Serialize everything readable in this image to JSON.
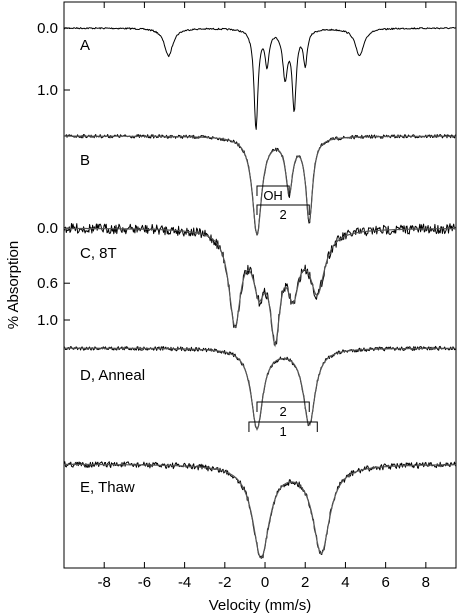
{
  "chart_data": {
    "type": "line",
    "title": "",
    "xlabel": "Velocity (mm/s)",
    "ylabel": "% Absorption",
    "xlim": [
      -10,
      9.5
    ],
    "x_ticks": [
      -8,
      -6,
      -4,
      -2,
      0,
      2,
      4,
      6,
      8
    ],
    "y_tick_groups": [
      {
        "labels": [
          "0.0",
          "1.0"
        ],
        "values": [
          0.0,
          1.0
        ],
        "panel": "A"
      },
      {
        "labels": [
          "0.0",
          "0.6",
          "1.0"
        ],
        "values": [
          0.0,
          0.6,
          1.0
        ],
        "panel": "C, 8T"
      }
    ],
    "series": [
      {
        "name": "A",
        "baseline_pct": 0.0,
        "scale_pct": 1.0,
        "fit": false,
        "peaks": [
          {
            "v": -4.8,
            "depth": 0.45,
            "width": 0.25
          },
          {
            "v": -0.45,
            "depth": 1.6,
            "width": 0.12
          },
          {
            "v": 0.1,
            "depth": 0.55,
            "width": 0.12
          },
          {
            "v": 1.0,
            "depth": 0.75,
            "width": 0.15
          },
          {
            "v": 1.45,
            "depth": 1.25,
            "width": 0.12
          },
          {
            "v": 2.0,
            "depth": 0.55,
            "width": 0.12
          },
          {
            "v": 4.7,
            "depth": 0.45,
            "width": 0.25
          }
        ]
      },
      {
        "name": "B",
        "fit": true,
        "peaks": [
          {
            "v": -0.4,
            "depth": 1.0,
            "width": 0.28
          },
          {
            "v": 1.2,
            "depth": 0.55,
            "width": 0.2
          },
          {
            "v": 2.2,
            "depth": 0.85,
            "width": 0.2
          }
        ],
        "annotations": [
          {
            "text": "OH",
            "from": -0.4,
            "to": 1.2,
            "type": "doublet"
          },
          {
            "text": "2",
            "from": -0.4,
            "to": 2.2,
            "type": "doublet"
          }
        ]
      },
      {
        "name": "C, 8T",
        "baseline_pct": 0.0,
        "scale_pct": 1.0,
        "fit": true,
        "peaks": [
          {
            "v": -1.5,
            "depth": 1.0,
            "width": 0.35
          },
          {
            "v": -0.3,
            "depth": 0.55,
            "width": 0.35
          },
          {
            "v": 0.5,
            "depth": 1.05,
            "width": 0.3
          },
          {
            "v": 1.4,
            "depth": 0.6,
            "width": 0.35
          },
          {
            "v": 2.6,
            "depth": 0.65,
            "width": 0.45
          }
        ]
      },
      {
        "name": "D, Anneal",
        "fit": true,
        "peaks": [
          {
            "v": -0.4,
            "depth": 1.0,
            "width": 0.35
          },
          {
            "v": 2.2,
            "depth": 0.95,
            "width": 0.35
          }
        ],
        "annotations": [
          {
            "text": "2",
            "from": -0.4,
            "to": 2.2,
            "type": "doublet"
          },
          {
            "text": "1",
            "from": -0.8,
            "to": 2.6,
            "type": "doublet"
          }
        ]
      },
      {
        "name": "E, Thaw",
        "fit": true,
        "peaks": [
          {
            "v": -0.2,
            "depth": 1.0,
            "width": 0.5
          },
          {
            "v": 2.8,
            "depth": 0.95,
            "width": 0.5
          }
        ]
      }
    ],
    "legend": "none",
    "grid": false
  }
}
